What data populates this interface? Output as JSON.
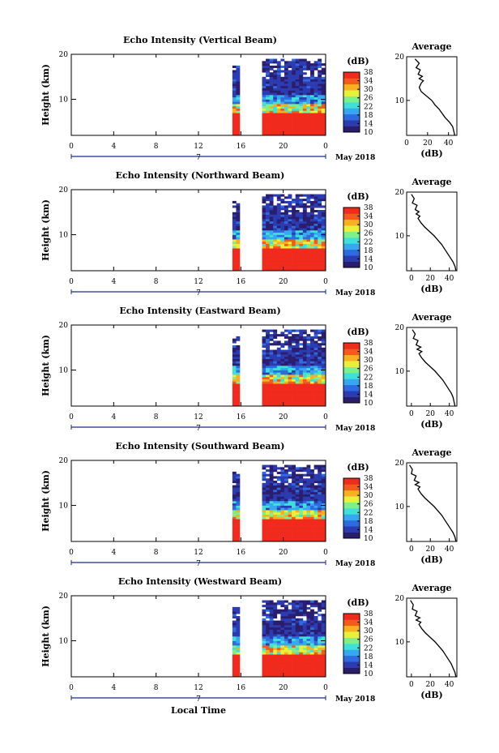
{
  "figure": {
    "x_axis_label": "Local Time",
    "date_label": "May 2018",
    "day_marker": "7"
  },
  "colors": {
    "colormap": [
      "#2a1d6e",
      "#2b3bb0",
      "#2f6be0",
      "#35a8f0",
      "#3fe0d8",
      "#7ef08a",
      "#e8f03a",
      "#f8b020",
      "#f45a1c",
      "#f02a1c"
    ],
    "low_fill": "#3a4ba8",
    "high_fill": "#f23a22"
  },
  "chart_data": [
    {
      "type": "heatmap",
      "title": "Echo Intensity (Vertical Beam)",
      "xlabel": "",
      "ylabel": "Height (km)",
      "xlim": [
        0,
        24
      ],
      "ylim": [
        2,
        20
      ],
      "x_ticks": [
        "0",
        "4",
        "8",
        "12",
        "16",
        "20",
        "0"
      ],
      "y_ticks": [
        "10",
        "20"
      ],
      "colorbar": {
        "label": "(dB)",
        "range": [
          10,
          38
        ],
        "ticks": [
          "10",
          "14",
          "18",
          "22",
          "26",
          "30",
          "34",
          "38"
        ]
      },
      "data_segments": [
        {
          "x_start": 15.2,
          "x_end": 15.9,
          "top_km": 17.5
        },
        {
          "x_start": 18.0,
          "x_end": 24.0,
          "top_km": 19.0
        }
      ],
      "average_profile": {
        "title": "Average",
        "xlabel": "(dB)",
        "x_ticks": [
          "0",
          "20",
          "40"
        ],
        "y_ticks": [
          "10",
          "20"
        ],
        "xlim": [
          0,
          48
        ],
        "ylim": [
          2,
          20
        ],
        "x": [
          8,
          12,
          9,
          13,
          11,
          15,
          12,
          16,
          14,
          12,
          14,
          19,
          24,
          27,
          31,
          34,
          37,
          41,
          44,
          45,
          46
        ],
        "y": [
          19.5,
          18.5,
          17.5,
          17.0,
          16.0,
          15.5,
          15.0,
          14.5,
          14.0,
          13.0,
          12.0,
          11.0,
          10.0,
          9.0,
          8.0,
          7.0,
          6.0,
          5.0,
          4.0,
          3.0,
          2.0
        ]
      }
    },
    {
      "type": "heatmap",
      "title": "Echo Intensity (Northward Beam)",
      "xlabel": "",
      "ylabel": "Height (km)",
      "xlim": [
        0,
        24
      ],
      "ylim": [
        2,
        20
      ],
      "x_ticks": [
        "0",
        "4",
        "8",
        "12",
        "16",
        "20",
        "0"
      ],
      "y_ticks": [
        "10",
        "20"
      ],
      "colorbar": {
        "label": "(dB)",
        "range": [
          10,
          38
        ],
        "ticks": [
          "10",
          "14",
          "18",
          "22",
          "26",
          "30",
          "34",
          "38"
        ]
      },
      "data_segments": [
        {
          "x_start": 15.2,
          "x_end": 15.9,
          "top_km": 17.5
        },
        {
          "x_start": 18.0,
          "x_end": 24.0,
          "top_km": 19.0
        }
      ],
      "average_profile": {
        "title": "Average",
        "xlabel": "(dB)",
        "x_ticks": [
          "0",
          "20",
          "40"
        ],
        "y_ticks": [
          "10",
          "20"
        ],
        "xlim": [
          -5,
          48
        ],
        "ylim": [
          2,
          20
        ],
        "x": [
          0,
          3,
          1,
          6,
          4,
          8,
          5,
          9,
          7,
          10,
          14,
          19,
          24,
          28,
          32,
          35,
          38,
          41,
          44,
          46,
          47
        ],
        "y": [
          19.5,
          18.5,
          17.5,
          17.0,
          16.0,
          15.5,
          15.0,
          14.5,
          14.0,
          13.0,
          12.0,
          11.0,
          10.0,
          9.0,
          8.0,
          7.0,
          6.0,
          5.0,
          4.0,
          3.0,
          2.0
        ]
      }
    },
    {
      "type": "heatmap",
      "title": "Echo Intensity (Eastward Beam)",
      "xlabel": "",
      "ylabel": "Height (km)",
      "xlim": [
        0,
        24
      ],
      "ylim": [
        2,
        20
      ],
      "x_ticks": [
        "0",
        "4",
        "8",
        "12",
        "16",
        "20",
        "0"
      ],
      "y_ticks": [
        "10",
        "20"
      ],
      "colorbar": {
        "label": "(dB)",
        "range": [
          10,
          38
        ],
        "ticks": [
          "10",
          "14",
          "18",
          "22",
          "26",
          "30",
          "34",
          "38"
        ]
      },
      "data_segments": [
        {
          "x_start": 15.2,
          "x_end": 15.9,
          "top_km": 17.5
        },
        {
          "x_start": 18.0,
          "x_end": 24.0,
          "top_km": 19.0
        }
      ],
      "average_profile": {
        "title": "Average",
        "xlabel": "(dB)",
        "x_ticks": [
          "0",
          "20",
          "40"
        ],
        "y_ticks": [
          "10",
          "20"
        ],
        "xlim": [
          -5,
          48
        ],
        "ylim": [
          2,
          20
        ],
        "x": [
          1,
          4,
          2,
          7,
          5,
          10,
          6,
          11,
          8,
          11,
          15,
          20,
          25,
          29,
          33,
          36,
          39,
          42,
          44,
          45,
          46
        ],
        "y": [
          19.5,
          18.5,
          17.5,
          17.0,
          16.0,
          15.5,
          15.0,
          14.5,
          14.0,
          13.0,
          12.0,
          11.0,
          10.0,
          9.0,
          8.0,
          7.0,
          6.0,
          5.0,
          4.0,
          3.0,
          2.0
        ]
      }
    },
    {
      "type": "heatmap",
      "title": "Echo Intensity (Southward Beam)",
      "xlabel": "",
      "ylabel": "Height (km)",
      "xlim": [
        0,
        24
      ],
      "ylim": [
        2,
        20
      ],
      "x_ticks": [
        "0",
        "4",
        "8",
        "12",
        "16",
        "20",
        "0"
      ],
      "y_ticks": [
        "10",
        "20"
      ],
      "colorbar": {
        "label": "(dB)",
        "range": [
          10,
          38
        ],
        "ticks": [
          "10",
          "14",
          "18",
          "22",
          "26",
          "30",
          "34",
          "38"
        ]
      },
      "data_segments": [
        {
          "x_start": 15.2,
          "x_end": 15.9,
          "top_km": 17.5
        },
        {
          "x_start": 18.0,
          "x_end": 24.0,
          "top_km": 19.0
        }
      ],
      "average_profile": {
        "title": "Average",
        "xlabel": "(dB)",
        "x_ticks": [
          "0",
          "20",
          "40"
        ],
        "y_ticks": [
          "10",
          "20"
        ],
        "xlim": [
          -5,
          48
        ],
        "ylim": [
          2,
          20
        ],
        "x": [
          -2,
          1,
          0,
          5,
          3,
          8,
          4,
          9,
          7,
          10,
          14,
          19,
          24,
          28,
          32,
          35,
          38,
          41,
          44,
          46,
          47
        ],
        "y": [
          19.5,
          18.5,
          17.5,
          17.0,
          16.0,
          15.5,
          15.0,
          14.5,
          14.0,
          13.0,
          12.0,
          11.0,
          10.0,
          9.0,
          8.0,
          7.0,
          6.0,
          5.0,
          4.0,
          3.0,
          2.0
        ]
      }
    },
    {
      "type": "heatmap",
      "title": "Echo Intensity (Westward Beam)",
      "xlabel": "Local Time",
      "ylabel": "Height (km)",
      "xlim": [
        0,
        24
      ],
      "ylim": [
        2,
        20
      ],
      "x_ticks": [
        "0",
        "4",
        "8",
        "12",
        "16",
        "20",
        "0"
      ],
      "y_ticks": [
        "10",
        "20"
      ],
      "colorbar": {
        "label": "(dB)",
        "range": [
          10,
          38
        ],
        "ticks": [
          "10",
          "14",
          "18",
          "22",
          "26",
          "30",
          "34",
          "38"
        ]
      },
      "data_segments": [
        {
          "x_start": 15.2,
          "x_end": 15.9,
          "top_km": 17.5
        },
        {
          "x_start": 18.0,
          "x_end": 24.0,
          "top_km": 19.0
        }
      ],
      "average_profile": {
        "title": "Average",
        "xlabel": "(dB)",
        "x_ticks": [
          "0",
          "20",
          "40"
        ],
        "y_ticks": [
          "10",
          "20"
        ],
        "xlim": [
          -5,
          48
        ],
        "ylim": [
          2,
          20
        ],
        "x": [
          -1,
          2,
          1,
          6,
          4,
          9,
          5,
          10,
          8,
          11,
          15,
          20,
          25,
          29,
          33,
          36,
          39,
          42,
          44,
          46,
          47
        ],
        "y": [
          19.5,
          18.5,
          17.5,
          17.0,
          16.0,
          15.5,
          15.0,
          14.5,
          14.0,
          13.0,
          12.0,
          11.0,
          10.0,
          9.0,
          8.0,
          7.0,
          6.0,
          5.0,
          4.0,
          3.0,
          2.0
        ]
      }
    }
  ]
}
